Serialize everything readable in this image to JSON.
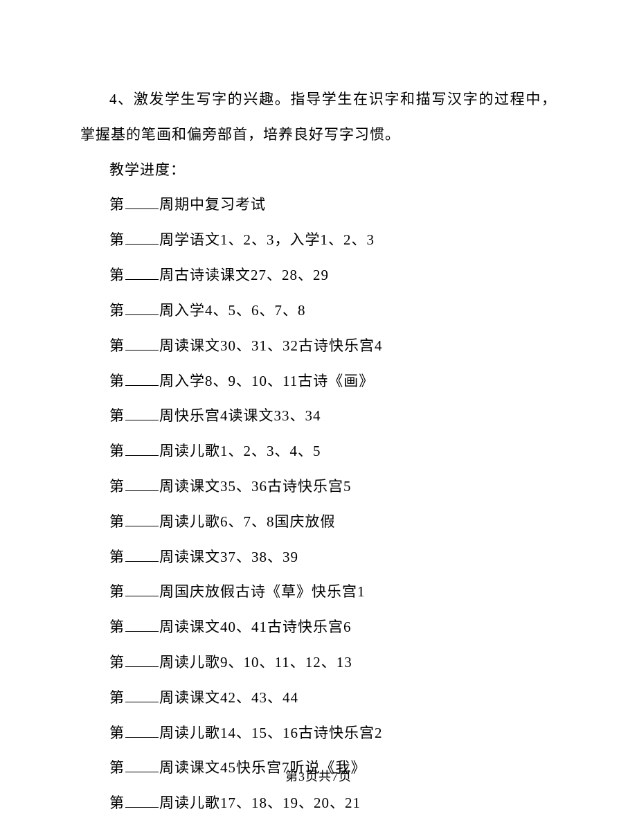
{
  "intro": "4、激发学生写字的兴趣。指导学生在识字和描写汉字的过程中，掌握基的笔画和偏旁部首，培养良好写字习惯。",
  "section_title": "教学进度：",
  "item_prefix": "第",
  "item_mid": "周",
  "items": [
    "期中复习考试",
    "学语文1、2、3，入学1、2、3",
    "古诗读课文27、28、29",
    "入学4、5、6、7、8",
    "读课文30、31、32古诗快乐宫4",
    "入学8、9、10、11古诗《画》",
    "快乐宫4读课文33、34",
    "读儿歌1、2、3、4、5",
    "读课文35、36古诗快乐宫5",
    "读儿歌6、7、8国庆放假",
    "读课文37、38、39",
    "国庆放假古诗《草》快乐宫1",
    "读课文40、41古诗快乐宫6",
    "读儿歌9、10、11、12、13",
    "读课文42、43、44",
    "读儿歌14、15、16古诗快乐宫2",
    "读课文45快乐宫7听说《我》",
    "读儿歌17、18、19、20、21"
  ],
  "footer": "第3页共7页"
}
